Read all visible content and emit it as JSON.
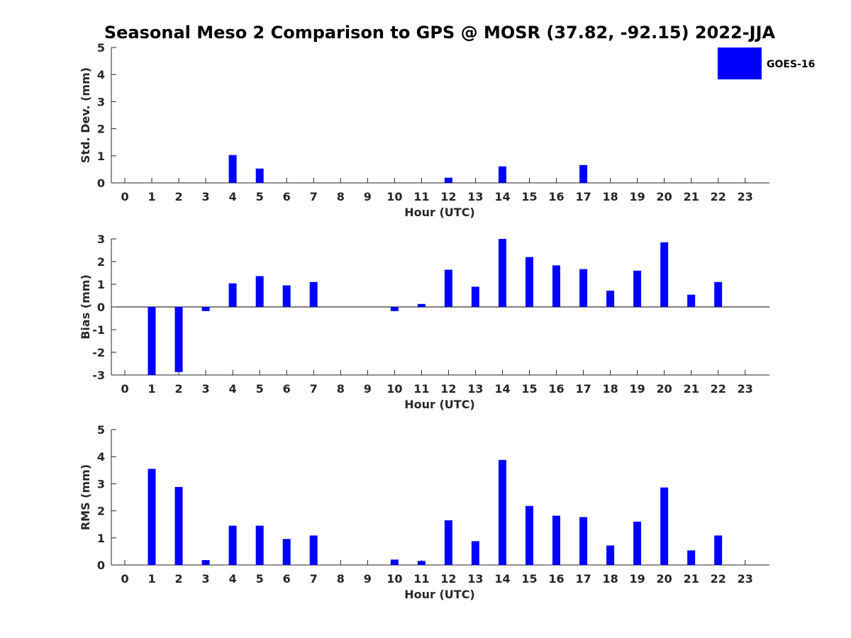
{
  "title": "Seasonal Meso 2 Comparison to GPS @ MOSR (37.82, -92.15) 2022-JJA",
  "legend": {
    "label": "GOES-16",
    "color": "#0000ff"
  },
  "chart_data": [
    {
      "type": "bar",
      "xlabel": "Hour (UTC)",
      "ylabel": "Std. Dev. (mm)",
      "ylim": [
        0,
        5
      ],
      "yticks": [
        "0",
        "1",
        "2",
        "3",
        "4",
        "5"
      ],
      "categories": [
        "0",
        "1",
        "2",
        "3",
        "4",
        "5",
        "6",
        "7",
        "8",
        "9",
        "10",
        "11",
        "12",
        "13",
        "14",
        "15",
        "16",
        "17",
        "18",
        "19",
        "20",
        "21",
        "22",
        "23"
      ],
      "series": [
        {
          "name": "GOES-16",
          "values": [
            0,
            0,
            0,
            0,
            1.03,
            0.53,
            0,
            0,
            0,
            0,
            0,
            0,
            0.19,
            0,
            0.61,
            0,
            0,
            0.66,
            0,
            0,
            0,
            0,
            0,
            0
          ]
        }
      ]
    },
    {
      "type": "bar",
      "xlabel": "Hour (UTC)",
      "ylabel": "Bias (mm)",
      "ylim": [
        -3,
        3
      ],
      "yticks": [
        "-3",
        "-2",
        "-1",
        "0",
        "1",
        "2",
        "3"
      ],
      "categories": [
        "0",
        "1",
        "2",
        "3",
        "4",
        "5",
        "6",
        "7",
        "8",
        "9",
        "10",
        "11",
        "12",
        "13",
        "14",
        "15",
        "16",
        "17",
        "18",
        "19",
        "20",
        "21",
        "22",
        "23"
      ],
      "series": [
        {
          "name": "GOES-16",
          "values": [
            0,
            -3.0,
            -2.87,
            -0.18,
            1.04,
            1.36,
            0.95,
            1.1,
            0,
            0,
            -0.18,
            0.13,
            1.64,
            0.89,
            3.0,
            2.2,
            1.83,
            1.67,
            0.72,
            1.6,
            2.85,
            0.54,
            1.1,
            0
          ]
        }
      ]
    },
    {
      "type": "bar",
      "xlabel": "Hour (UTC)",
      "ylabel": "RMS (mm)",
      "ylim": [
        0,
        5
      ],
      "yticks": [
        "0",
        "1",
        "2",
        "3",
        "4",
        "5"
      ],
      "categories": [
        "0",
        "1",
        "2",
        "3",
        "4",
        "5",
        "6",
        "7",
        "8",
        "9",
        "10",
        "11",
        "12",
        "13",
        "14",
        "15",
        "16",
        "17",
        "18",
        "19",
        "20",
        "21",
        "22",
        "23"
      ],
      "series": [
        {
          "name": "GOES-16",
          "values": [
            0,
            3.55,
            2.88,
            0.18,
            1.45,
            1.45,
            0.96,
            1.09,
            0,
            0,
            0.2,
            0.15,
            1.65,
            0.88,
            3.88,
            2.18,
            1.82,
            1.77,
            0.72,
            1.6,
            2.86,
            0.54,
            1.09,
            0
          ]
        }
      ]
    }
  ]
}
